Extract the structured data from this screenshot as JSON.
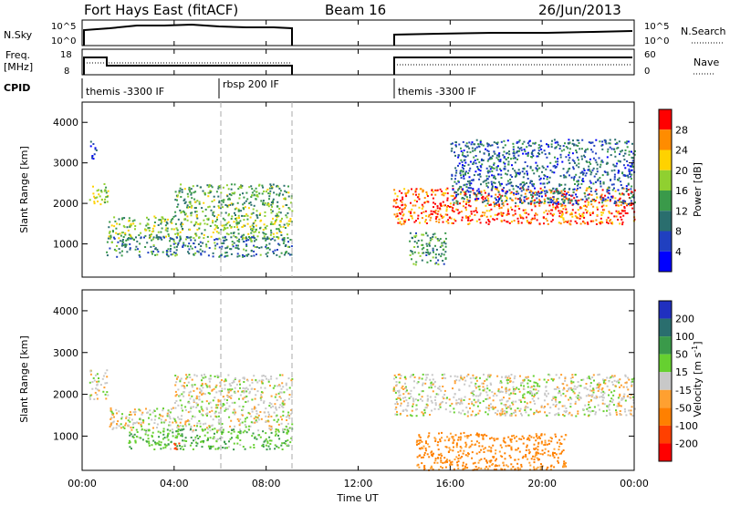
{
  "header": {
    "radar": "Fort Hays East (fitACF)",
    "beam": "Beam 16",
    "date": "26/Jun/2013"
  },
  "status_panels": {
    "nsky_label": "N.Sky",
    "nsky_ticks": [
      "10^5",
      "10^0"
    ],
    "nsearch_label": "N.Search",
    "nsearch_ticks": [
      "10^5",
      "10^0"
    ],
    "freq_label_1": "Freq.",
    "freq_label_2": "[MHz]",
    "freq_ticks": [
      "18",
      "8"
    ],
    "nave_label": "Nave",
    "nave_ticks": [
      "60",
      "0"
    ],
    "cpid_label": "CPID",
    "cpid_segments": [
      {
        "label": "themis -3300 IF",
        "start_hour": 0.0
      },
      {
        "label": "rbsp 200 IF",
        "start_hour": 6.0
      },
      {
        "label": "themis -3300 IF",
        "start_hour": 13.5
      }
    ]
  },
  "axes": {
    "xlabel": "Time UT",
    "xticks": [
      "00:00",
      "04:00",
      "08:00",
      "12:00",
      "16:00",
      "20:00",
      "00:00"
    ],
    "ylabel": "Slant Range [km]",
    "yticks": [
      "4000",
      "3000",
      "2000",
      "1000"
    ]
  },
  "power_scale": {
    "label": "Power [dB]",
    "ticks": [
      "28",
      "24",
      "20",
      "16",
      "12",
      "8",
      "4"
    ],
    "colors": [
      "#ff0000",
      "#ff8c00",
      "#ffd200",
      "#90d030",
      "#3a9a4a",
      "#2a6e6e",
      "#2040c0",
      "#0000ff"
    ]
  },
  "velocity_scale": {
    "label_main": "Velocity [m s",
    "label_sup": "-1",
    "label_end": "]",
    "ticks": [
      "200",
      "100",
      "50",
      "15",
      "-15",
      "-50",
      "-100",
      "-200"
    ],
    "colors": [
      "#2030c0",
      "#2a6e6e",
      "#3a9a4a",
      "#66d030",
      "#c8c8c8",
      "#ffa030",
      "#ff8000",
      "#ff4000",
      "#ff0000"
    ]
  },
  "chart_data": {
    "type": "heatmap",
    "title": "Fort Hays East (fitACF)",
    "xlabel": "Time UT",
    "ylabel": "Slant Range [km]",
    "xlim": [
      0,
      24
    ],
    "ylim": [
      180,
      4500
    ],
    "data_gap_hours": [
      9.1,
      13.5
    ],
    "panels": [
      {
        "name": "Power [dB]",
        "range": [
          0,
          30
        ],
        "bands": [
          {
            "t0": 0.3,
            "t1": 1.1,
            "r0": 1950,
            "r1": 2500,
            "level": 18
          },
          {
            "t0": 1.1,
            "t1": 9.1,
            "r0": 1150,
            "r1": 1700,
            "level": 16
          },
          {
            "t0": 4.0,
            "t1": 9.1,
            "r0": 1700,
            "r1": 2500,
            "level": 14
          },
          {
            "t0": 1.0,
            "t1": 9.1,
            "r0": 700,
            "r1": 1200,
            "level": 10
          },
          {
            "t0": 0.3,
            "t1": 0.6,
            "r0": 3100,
            "r1": 3600,
            "level": 6
          },
          {
            "t0": 13.5,
            "t1": 24.0,
            "r0": 1500,
            "r1": 2400,
            "level": 26
          },
          {
            "t0": 16.0,
            "t1": 24.0,
            "r0": 2000,
            "r1": 3600,
            "level": 8
          },
          {
            "t0": 14.2,
            "t1": 15.8,
            "r0": 500,
            "r1": 1300,
            "level": 12
          }
        ]
      },
      {
        "name": "Velocity [m s-1]",
        "range": [
          -200,
          200
        ],
        "bands": [
          {
            "t0": 0.3,
            "t1": 1.1,
            "r0": 1900,
            "r1": 2600,
            "level": 0
          },
          {
            "t0": 1.1,
            "t1": 9.1,
            "r0": 1150,
            "r1": 1700,
            "level": 0
          },
          {
            "t0": 4.0,
            "t1": 9.1,
            "r0": 1700,
            "r1": 2500,
            "level": 0
          },
          {
            "t0": 2.0,
            "t1": 9.1,
            "r0": 700,
            "r1": 1200,
            "level": 40
          },
          {
            "t0": 3.8,
            "t1": 4.2,
            "r0": 700,
            "r1": 900,
            "level": -180
          },
          {
            "t0": 13.5,
            "t1": 24.0,
            "r0": 1500,
            "r1": 2500,
            "level": 0
          },
          {
            "t0": 14.5,
            "t1": 21.0,
            "r0": 200,
            "r1": 1100,
            "level": -60
          }
        ]
      }
    ]
  }
}
